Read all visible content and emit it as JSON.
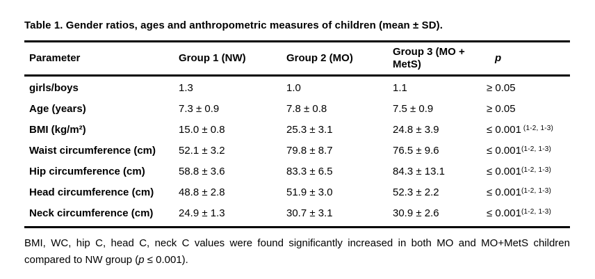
{
  "title": "Table 1. Gender ratios, ages and anthropometric measures of children (mean ± SD).",
  "colors": {
    "text": "#000000",
    "background": "#ffffff",
    "rule": "#000000"
  },
  "table": {
    "columns": {
      "parameter": "Parameter",
      "group1": "Group 1 (NW)",
      "group2": "Group 2 (MO)",
      "group3": "Group 3 (MO + MetS)",
      "p": "p"
    },
    "rows": [
      {
        "parameter": "girls/boys",
        "group1": "1.3",
        "group2": "1.0",
        "group3": "1.1",
        "p": "≥ 0.05",
        "p_sup": ""
      },
      {
        "parameter": "Age (years)",
        "group1": "7.3 ± 0.9",
        "group2": "7.8 ± 0.8",
        "group3": "7.5 ± 0.9",
        "p": "≥ 0.05",
        "p_sup": ""
      },
      {
        "parameter": "BMI (kg/m²)",
        "group1": "15.0 ± 0.8",
        "group2": "25.3 ± 3.1",
        "group3": "24.8 ± 3.9",
        "p": "≤ 0.001",
        "p_sup": " (1-2, 1-3)"
      },
      {
        "parameter": "Waist circumference (cm)",
        "group1": "52.1 ± 3.2",
        "group2": "79.8 ± 8.7",
        "group3": "76.5 ± 9.6",
        "p": "≤ 0.001",
        "p_sup": "(1-2, 1-3)"
      },
      {
        "parameter": "Hip circumference (cm)",
        "group1": "58.8 ± 3.6",
        "group2": "83.3 ± 6.5",
        "group3": "84.3 ± 13.1",
        "p": "≤ 0.001",
        "p_sup": "(1-2, 1-3)"
      },
      {
        "parameter": "Head circumference (cm)",
        "group1": "48.8 ± 2.8",
        "group2": "51.9 ± 3.0",
        "group3": "52.3 ± 2.2",
        "p": "≤ 0.001",
        "p_sup": "(1-2, 1-3)"
      },
      {
        "parameter": "Neck circumference (cm)",
        "group1": "24.9 ± 1.3",
        "group2": "30.7 ± 3.1",
        "group3": "30.9 ± 2.6",
        "p": "≤ 0.001",
        "p_sup": "(1-2, 1-3)"
      }
    ]
  },
  "footnote": {
    "before_p": "BMI, WC, hip C, head C, neck C values were found significantly increased in both MO and MO+MetS children compared to NW group (",
    "p_italic": "p",
    "after_p": " ≤ 0.001)."
  }
}
